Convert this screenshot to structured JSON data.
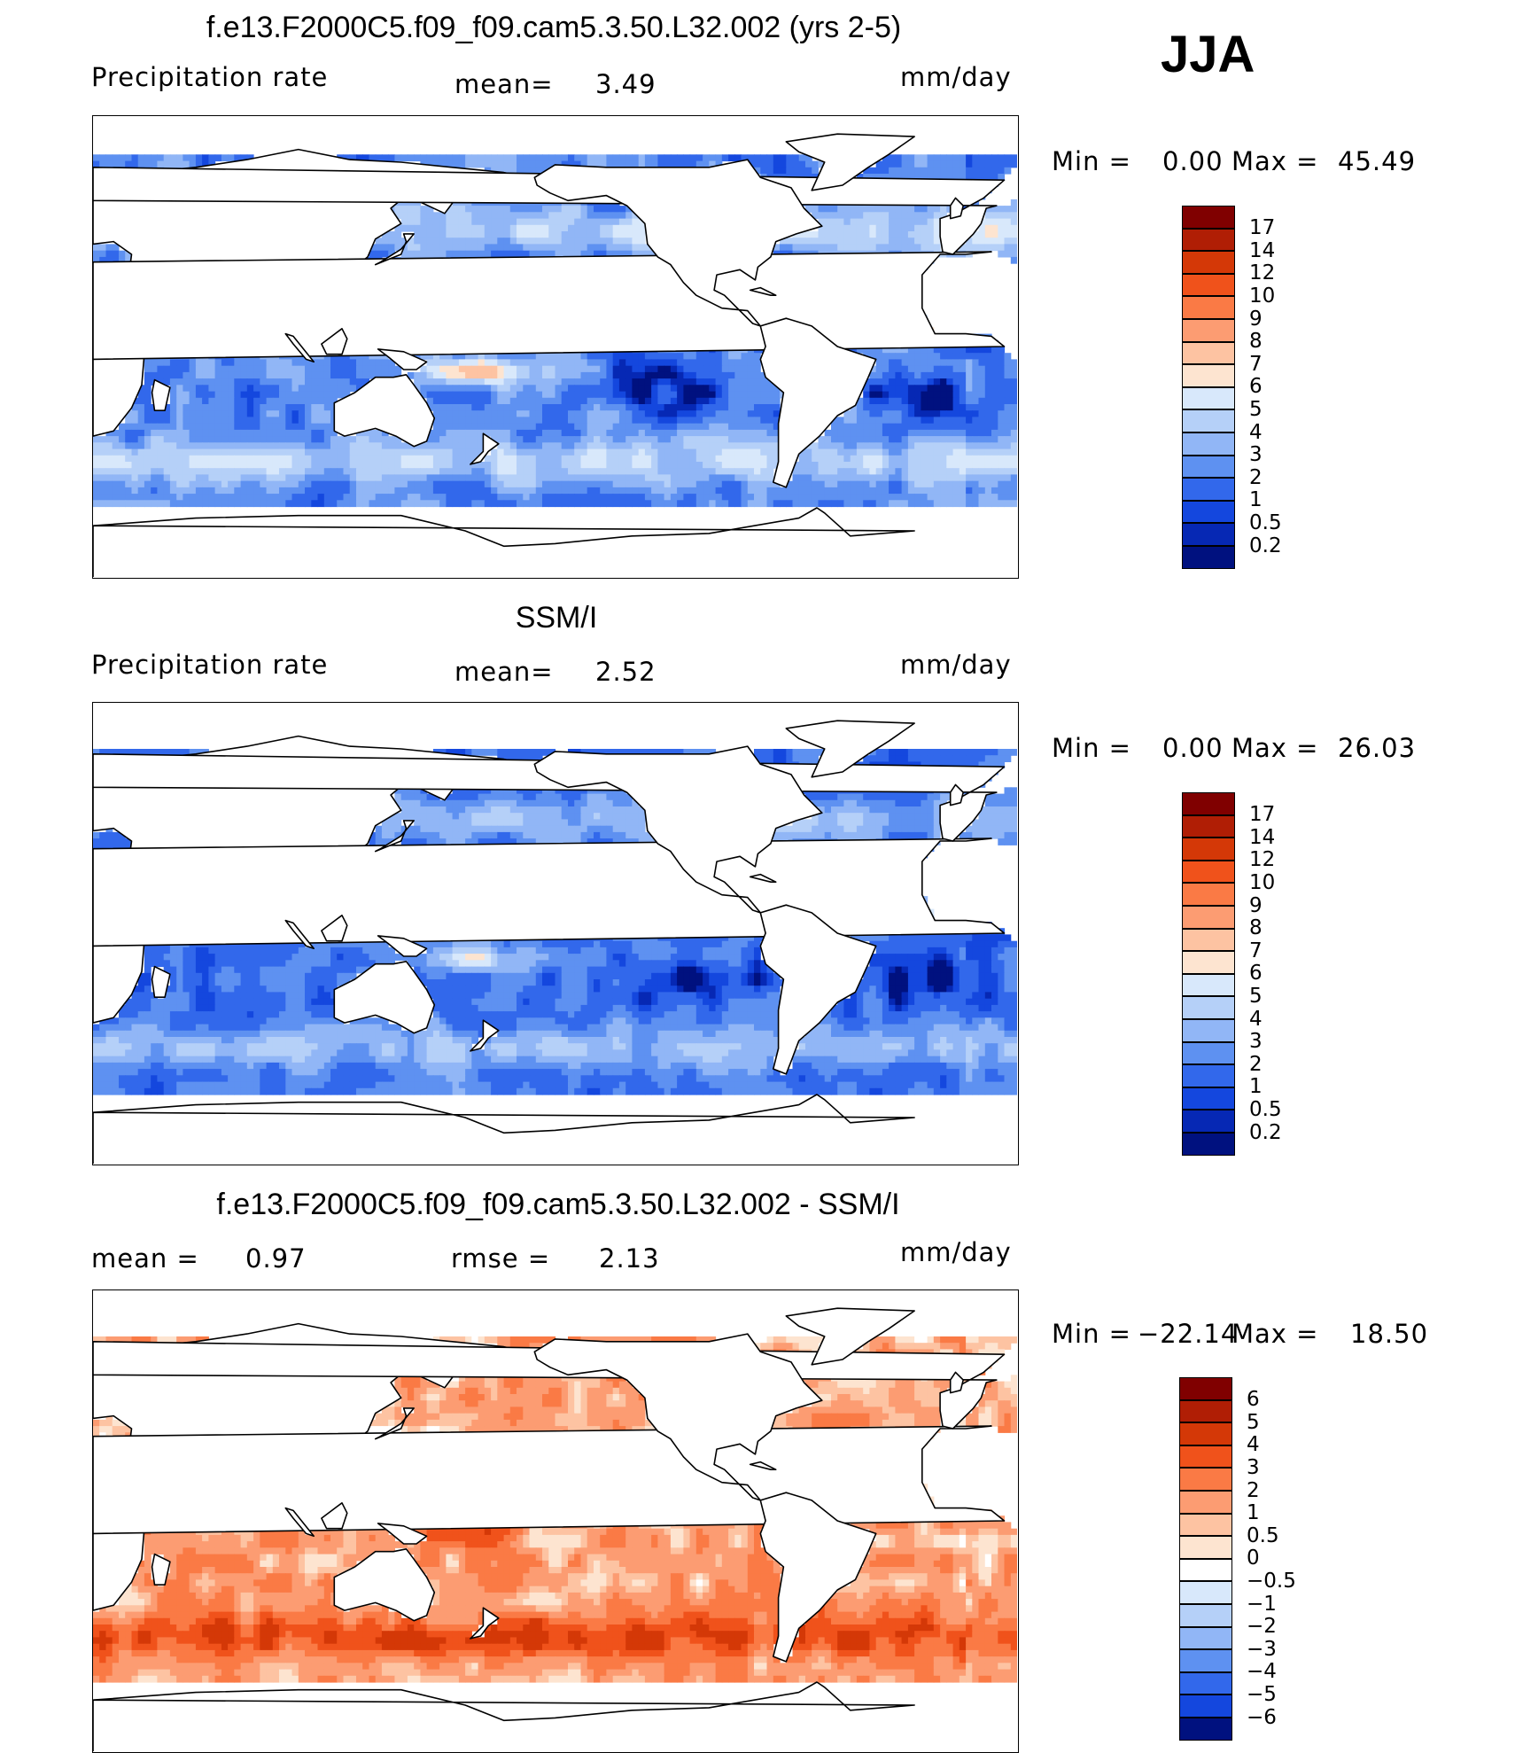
{
  "season": "JJA",
  "panels": [
    {
      "id": "model",
      "title": "f.e13.F2000C5.f09_f09.cam5.3.50.L32.002 (yrs 2-5)",
      "variable": "Precipitation  rate",
      "stat1_label": "mean=",
      "stat1_value": "3.49",
      "stat2_label": "",
      "stat2_value": "",
      "units": "mm/day",
      "min_label": "Min  =",
      "min_value": "0.00",
      "max_label": "Max  =",
      "max_value": "45.49",
      "levels": [
        "17",
        "14",
        "12",
        "10",
        "9",
        "8",
        "7",
        "6",
        "5",
        "4",
        "3",
        "2",
        "1",
        "0.5",
        "0.2"
      ],
      "colors": [
        "#800000",
        "#b01e05",
        "#d43807",
        "#f0521b",
        "#fa7a45",
        "#fc9c72",
        "#fdc3a2",
        "#fde4d0",
        "#d8e8fb",
        "#b5d0f8",
        "#91b6f6",
        "#5e91f1",
        "#3268eb",
        "#1447de",
        "#0628b4",
        "#00117f"
      ]
    },
    {
      "id": "obs",
      "title": "SSM/I",
      "variable": "Precipitation  rate",
      "stat1_label": "mean=",
      "stat1_value": "2.52",
      "stat2_label": "",
      "stat2_value": "",
      "units": "mm/day",
      "min_label": "Min  =",
      "min_value": "0.00",
      "max_label": "Max  =",
      "max_value": "26.03",
      "levels": [
        "17",
        "14",
        "12",
        "10",
        "9",
        "8",
        "7",
        "6",
        "5",
        "4",
        "3",
        "2",
        "1",
        "0.5",
        "0.2"
      ],
      "colors": [
        "#800000",
        "#b01e05",
        "#d43807",
        "#f0521b",
        "#fa7a45",
        "#fc9c72",
        "#fdc3a2",
        "#fde4d0",
        "#d8e8fb",
        "#b5d0f8",
        "#91b6f6",
        "#5e91f1",
        "#3268eb",
        "#1447de",
        "#0628b4",
        "#00117f"
      ]
    },
    {
      "id": "diff",
      "title": "f.e13.F2000C5.f09_f09.cam5.3.50.L32.002 - SSM/I",
      "variable": "",
      "stat1_label": "mean =",
      "stat1_value": "0.97",
      "stat2_label": "rmse  =",
      "stat2_value": "2.13",
      "units": "mm/day",
      "min_label": "Min  =",
      "min_value": "−22.14",
      "max_label": "Max  =",
      "max_value": "18.50",
      "levels": [
        "6",
        "5",
        "4",
        "3",
        "2",
        "1",
        "0.5",
        "0",
        "−0.5",
        "−1",
        "−2",
        "−3",
        "−4",
        "−5",
        "−6"
      ],
      "colors": [
        "#800000",
        "#b01e05",
        "#d43807",
        "#f0521b",
        "#fa7a45",
        "#fc9c72",
        "#fdc3a2",
        "#fde4d0",
        "#ffffff",
        "#d8e8fb",
        "#b5d0f8",
        "#91b6f6",
        "#5e91f1",
        "#3268eb",
        "#1447de",
        "#00117f"
      ]
    }
  ]
}
